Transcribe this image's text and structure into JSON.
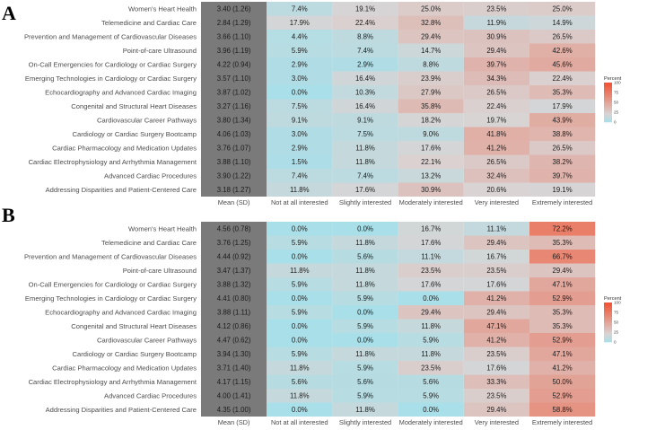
{
  "chart_data": [
    {
      "type": "heatmap",
      "panel_label": "A",
      "columns": [
        "Mean (SD)",
        "Not at all interested",
        "Slightly interested",
        "Moderately interested",
        "Very interested",
        "Extremely interested"
      ],
      "rows": [
        {
          "topic": "Women's Heart Health",
          "mean_sd": "3.40 (1.26)",
          "values": [
            7.4,
            19.1,
            25.0,
            23.5,
            25.0
          ]
        },
        {
          "topic": "Telemedicine and Cardiac Care",
          "mean_sd": "2.84 (1.29)",
          "values": [
            17.9,
            22.4,
            32.8,
            11.9,
            14.9
          ]
        },
        {
          "topic": "Prevention and Management of Cardiovascular Diseases",
          "mean_sd": "3.66 (1.10)",
          "values": [
            4.4,
            8.8,
            29.4,
            30.9,
            26.5
          ]
        },
        {
          "topic": "Point-of-care Ultrasound",
          "mean_sd": "3.96 (1.19)",
          "values": [
            5.9,
            7.4,
            14.7,
            29.4,
            42.6
          ]
        },
        {
          "topic": "On-Call Emergencies for Cardiology or Cardiac Surgery",
          "mean_sd": "4.22 (0.94)",
          "values": [
            2.9,
            2.9,
            8.8,
            39.7,
            45.6
          ]
        },
        {
          "topic": "Emerging Technologies in Cardiology or Cardiac Surgery",
          "mean_sd": "3.57 (1.10)",
          "values": [
            3.0,
            16.4,
            23.9,
            34.3,
            22.4
          ]
        },
        {
          "topic": "Echocardiography and Advanced Cardiac Imaging",
          "mean_sd": "3.87 (1.02)",
          "values": [
            0.0,
            10.3,
            27.9,
            26.5,
            35.3
          ]
        },
        {
          "topic": "Congenital and Structural Heart Diseases",
          "mean_sd": "3.27 (1.16)",
          "values": [
            7.5,
            16.4,
            35.8,
            22.4,
            17.9
          ]
        },
        {
          "topic": "Cardiovascular Career Pathways",
          "mean_sd": "3.80 (1.34)",
          "values": [
            9.1,
            9.1,
            18.2,
            19.7,
            43.9
          ]
        },
        {
          "topic": "Cardiology or Cardiac Surgery Bootcamp",
          "mean_sd": "4.06 (1.03)",
          "values": [
            3.0,
            7.5,
            9.0,
            41.8,
            38.8
          ]
        },
        {
          "topic": "Cardiac Pharmacology and Medication Updates",
          "mean_sd": "3.76 (1.07)",
          "values": [
            2.9,
            11.8,
            17.6,
            41.2,
            26.5
          ]
        },
        {
          "topic": "Cardiac Electrophysiology and Arrhythmia Management",
          "mean_sd": "3.88 (1.10)",
          "values": [
            1.5,
            11.8,
            22.1,
            26.5,
            38.2
          ]
        },
        {
          "topic": "Advanced Cardiac Procedures",
          "mean_sd": "3.90 (1.22)",
          "values": [
            7.4,
            7.4,
            13.2,
            32.4,
            39.7
          ]
        },
        {
          "topic": "Addressing Disparities and Patient-Centered Care",
          "mean_sd": "3.18 (1.27)",
          "values": [
            11.8,
            17.6,
            30.9,
            20.6,
            19.1
          ]
        }
      ],
      "legend": {
        "title": "Percent",
        "ticks": [
          0,
          25,
          50,
          75,
          100
        ],
        "position": "right"
      },
      "scale": {
        "min": 0,
        "max": 100,
        "low_color": "#a9dfe8",
        "mid_color": "#d9d4d4",
        "high_color": "#f25030"
      },
      "mean_column_color": "#7a7a7a"
    },
    {
      "type": "heatmap",
      "panel_label": "B",
      "columns": [
        "Mean (SD)",
        "Not at all interested",
        "Slightly interested",
        "Moderately interested",
        "Very interested",
        "Extremely interested"
      ],
      "rows": [
        {
          "topic": "Women's Heart Health",
          "mean_sd": "4.56 (0.78)",
          "values": [
            0.0,
            0.0,
            16.7,
            11.1,
            72.2
          ]
        },
        {
          "topic": "Telemedicine and Cardiac Care",
          "mean_sd": "3.76 (1.25)",
          "values": [
            5.9,
            11.8,
            17.6,
            29.4,
            35.3
          ]
        },
        {
          "topic": "Prevention and Management of Cardiovascular Diseases",
          "mean_sd": "4.44 (0.92)",
          "values": [
            0.0,
            5.6,
            11.1,
            16.7,
            66.7
          ]
        },
        {
          "topic": "Point-of-care Ultrasound",
          "mean_sd": "3.47 (1.37)",
          "values": [
            11.8,
            11.8,
            23.5,
            23.5,
            29.4
          ]
        },
        {
          "topic": "On-Call Emergencies for Cardiology or Cardiac Surgery",
          "mean_sd": "3.88 (1.32)",
          "values": [
            5.9,
            11.8,
            17.6,
            17.6,
            47.1
          ]
        },
        {
          "topic": "Emerging Technologies in Cardiology or Cardiac Surgery",
          "mean_sd": "4.41 (0.80)",
          "values": [
            0.0,
            5.9,
            0.0,
            41.2,
            52.9
          ]
        },
        {
          "topic": "Echocardiography and Advanced Cardiac Imaging",
          "mean_sd": "3.88 (1.11)",
          "values": [
            5.9,
            0.0,
            29.4,
            29.4,
            35.3
          ]
        },
        {
          "topic": "Congenital and Structural Heart Diseases",
          "mean_sd": "4.12 (0.86)",
          "values": [
            0.0,
            5.9,
            11.8,
            47.1,
            35.3
          ]
        },
        {
          "topic": "Cardiovascular Career Pathways",
          "mean_sd": "4.47 (0.62)",
          "values": [
            0.0,
            0.0,
            5.9,
            41.2,
            52.9
          ]
        },
        {
          "topic": "Cardiology or Cardiac Surgery Bootcamp",
          "mean_sd": "3.94 (1.30)",
          "values": [
            5.9,
            11.8,
            11.8,
            23.5,
            47.1
          ]
        },
        {
          "topic": "Cardiac Pharmacology and Medication Updates",
          "mean_sd": "3.71 (1.40)",
          "values": [
            11.8,
            5.9,
            23.5,
            17.6,
            41.2
          ]
        },
        {
          "topic": "Cardiac Electrophysiology and Arrhythmia Management",
          "mean_sd": "4.17 (1.15)",
          "values": [
            5.6,
            5.6,
            5.6,
            33.3,
            50.0
          ]
        },
        {
          "topic": "Advanced Cardiac Procedures",
          "mean_sd": "4.00 (1.41)",
          "values": [
            11.8,
            5.9,
            5.9,
            23.5,
            52.9
          ]
        },
        {
          "topic": "Addressing Disparities and Patient-Centered Care",
          "mean_sd": "4.35 (1.00)",
          "values": [
            0.0,
            11.8,
            0.0,
            29.4,
            58.8
          ]
        }
      ],
      "legend": {
        "title": "Percent",
        "ticks": [
          0,
          25,
          50,
          75,
          100
        ],
        "position": "right"
      },
      "scale": {
        "min": 0,
        "max": 100,
        "low_color": "#a9dfe8",
        "mid_color": "#d9d4d4",
        "high_color": "#f25030"
      },
      "mean_column_color": "#7a7a7a"
    }
  ]
}
